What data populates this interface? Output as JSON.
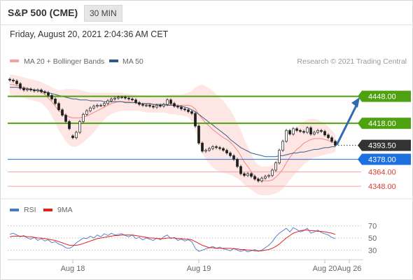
{
  "header": {
    "title": "S&P 500 (CME)",
    "timeframe": "30 MIN",
    "datetime": "Friday, August 20, 2021 2:04:36 AM CET"
  },
  "legend": {
    "ma20_bb": "MA 20 + Bollinger Bands",
    "ma50": "MA 50",
    "credit": "Research © 2021 Trading Central",
    "rsi": "RSI",
    "rsi_ma": "9MA"
  },
  "colors": {
    "bollinger_fill": "#fde3e0",
    "ma20": "#f08a80",
    "ma50": "#3a5f8a",
    "resistance": "#4ea20f",
    "pivot": "#1e6fe0",
    "support": "#f4a3a3",
    "last_price": "#333333",
    "arrow": "#2f6bb0",
    "rsi": "#4a79c8",
    "rsi_ma": "#e0221f",
    "candle": "#1f1f1f"
  },
  "chart_data": [
    {
      "type": "candlestick",
      "title": "S&P 500 (CME)",
      "interval": "30 MIN",
      "ylim": [
        4338,
        4478
      ],
      "x_tick_labels": [
        "Aug 18",
        "Aug 19",
        "Aug 20",
        "Aug 26"
      ],
      "levels": [
        {
          "label": "4448.00",
          "value": 4448.0,
          "kind": "resistance"
        },
        {
          "label": "4418.00",
          "value": 4418.0,
          "kind": "resistance"
        },
        {
          "label": "4393.50",
          "value": 4393.5,
          "kind": "last"
        },
        {
          "label": "4378.00",
          "value": 4378.0,
          "kind": "pivot"
        },
        {
          "label": "4364.00",
          "value": 4364.0,
          "kind": "support"
        },
        {
          "label": "4348.00",
          "value": 4348.0,
          "kind": "support"
        }
      ],
      "projection": {
        "from": 4394,
        "to": 4447
      },
      "close": [
        4466,
        4465,
        4462,
        4457,
        4455,
        4456,
        4455,
        4454,
        4455,
        4453,
        4452,
        4449,
        4445,
        4440,
        4433,
        4427,
        4420,
        4412,
        4402,
        4408,
        4420,
        4428,
        4432,
        4435,
        4437,
        4438,
        4438,
        4440,
        4443,
        4445,
        4446,
        4447,
        4447,
        4446,
        4445,
        4444,
        4441,
        4439,
        4438,
        4438,
        4437,
        4436,
        4438,
        4437,
        4439,
        4444,
        4440,
        4437,
        4436,
        4434,
        4433,
        4431,
        4429,
        4415,
        4396,
        4387,
        4388,
        4390,
        4392,
        4391,
        4390,
        4388,
        4385,
        4382,
        4378,
        4370,
        4362,
        4360,
        4362,
        4359,
        4356,
        4354,
        4357,
        4359,
        4360,
        4366,
        4374,
        4388,
        4398,
        4410,
        4406,
        4412,
        4410,
        4409,
        4408,
        4413,
        4406,
        4408,
        4410,
        4409,
        4405,
        4402,
        4398,
        4393.5
      ],
      "open": [
        4467,
        4466,
        4465,
        4462,
        4457,
        4455,
        4456,
        4455,
        4454,
        4455,
        4453,
        4452,
        4449,
        4445,
        4440,
        4433,
        4427,
        4420,
        4404,
        4402,
        4408,
        4420,
        4428,
        4432,
        4435,
        4437,
        4438,
        4438,
        4440,
        4443,
        4445,
        4446,
        4447,
        4447,
        4446,
        4445,
        4444,
        4441,
        4439,
        4438,
        4438,
        4437,
        4436,
        4438,
        4437,
        4439,
        4444,
        4440,
        4437,
        4436,
        4434,
        4433,
        4431,
        4429,
        4415,
        4396,
        4387,
        4388,
        4390,
        4392,
        4391,
        4390,
        4388,
        4385,
        4382,
        4378,
        4370,
        4362,
        4360,
        4362,
        4359,
        4356,
        4354,
        4357,
        4359,
        4360,
        4366,
        4374,
        4388,
        4398,
        4410,
        4406,
        4412,
        4410,
        4409,
        4408,
        4413,
        4406,
        4408,
        4410,
        4409,
        4405,
        4402,
        4398
      ],
      "bollinger_upper": [
        4472,
        4472,
        4471,
        4470,
        4469,
        4468,
        4467,
        4466,
        4465,
        4464,
        4462,
        4460,
        4458,
        4456,
        4455,
        4455,
        4456,
        4456,
        4456,
        4456,
        4455,
        4454,
        4453,
        4452,
        4452,
        4452,
        4452,
        4452,
        4452,
        4452,
        4452,
        4452,
        4452,
        4451,
        4451,
        4450,
        4450,
        4449,
        4449,
        4448,
        4448,
        4447,
        4447,
        4447,
        4447,
        4449,
        4450,
        4450,
        4450,
        4450,
        4451,
        4452,
        4454,
        4458,
        4460,
        4461,
        4459,
        4457,
        4454,
        4450,
        4446,
        4443,
        4438,
        4433,
        4426,
        4418,
        4410,
        4400,
        4392,
        4384,
        4376,
        4372,
        4370,
        4370,
        4370,
        4372,
        4376,
        4382,
        4390,
        4398,
        4405,
        4410,
        4414,
        4417,
        4420,
        4422,
        4423,
        4423,
        4422,
        4420,
        4418,
        4414,
        4410,
        4406
      ],
      "bollinger_lower": [
        4450,
        4449,
        4448,
        4447,
        4446,
        4445,
        4444,
        4443,
        4442,
        4441,
        4437,
        4432,
        4426,
        4418,
        4410,
        4404,
        4398,
        4394,
        4392,
        4392,
        4394,
        4397,
        4400,
        4404,
        4408,
        4413,
        4418,
        4422,
        4426,
        4428,
        4430,
        4431,
        4432,
        4432,
        4432,
        4432,
        4432,
        4432,
        4431,
        4430,
        4430,
        4430,
        4430,
        4430,
        4430,
        4429,
        4428,
        4428,
        4427,
        4427,
        4426,
        4425,
        4420,
        4410,
        4396,
        4385,
        4378,
        4373,
        4369,
        4366,
        4364,
        4363,
        4362,
        4361,
        4359,
        4357,
        4354,
        4350,
        4347,
        4344,
        4341,
        4339,
        4338,
        4338,
        4338,
        4339,
        4340,
        4342,
        4345,
        4350,
        4355,
        4360,
        4364,
        4368,
        4372,
        4375,
        4378,
        4380,
        4381,
        4382,
        4383,
        4384,
        4385,
        4386
      ],
      "ma20": [
        4461,
        4461,
        4460,
        4459,
        4458,
        4457,
        4456,
        4455,
        4454,
        4453,
        4450,
        4446,
        4442,
        4437,
        4432,
        4429,
        4427,
        4425,
        4424,
        4424,
        4424,
        4425,
        4426,
        4428,
        4430,
        4432,
        4434,
        4436,
        4438,
        4440,
        4441,
        4442,
        4442,
        4442,
        4442,
        4441,
        4441,
        4440,
        4440,
        4439,
        4439,
        4439,
        4438,
        4438,
        4438,
        4439,
        4439,
        4439,
        4438,
        4438,
        4438,
        4438,
        4437,
        4434,
        4428,
        4423,
        4418,
        4415,
        4411,
        4408,
        4405,
        4402,
        4400,
        4397,
        4393,
        4388,
        4382,
        4375,
        4370,
        4364,
        4359,
        4356,
        4354,
        4354,
        4354,
        4355,
        4358,
        4362,
        4367,
        4374,
        4380,
        4385,
        4389,
        4392,
        4396,
        4398,
        4400,
        4401,
        4401,
        4401,
        4400,
        4399,
        4397,
        4396
      ],
      "ma50": [
        4458,
        4458,
        4458,
        4457,
        4457,
        4456,
        4456,
        4455,
        4455,
        4454,
        4453,
        4452,
        4451,
        4450,
        4449,
        4448,
        4447,
        4446,
        4445,
        4445,
        4444,
        4444,
        4444,
        4443,
        4443,
        4443,
        4443,
        4442,
        4442,
        4442,
        4442,
        4442,
        4442,
        4441,
        4441,
        4441,
        4441,
        4440,
        4440,
        4440,
        4440,
        4439,
        4439,
        4439,
        4439,
        4438,
        4438,
        4438,
        4437,
        4437,
        4436,
        4435,
        4433,
        4431,
        4428,
        4425,
        4422,
        4419,
        4416,
        4413,
        4410,
        4407,
        4404,
        4400,
        4397,
        4394,
        4391,
        4389,
        4387,
        4385,
        4384,
        4383,
        4382,
        4381,
        4381,
        4381,
        4381,
        4382,
        4382,
        4383,
        4384,
        4385,
        4385,
        4386,
        4386,
        4387,
        4388,
        4389,
        4389,
        4390,
        4391,
        4391,
        4392,
        4392
      ]
    },
    {
      "type": "line",
      "title": "RSI",
      "ylim": [
        20,
        80
      ],
      "y_tick_labels": [
        "70",
        "50",
        "30"
      ],
      "reference_lines": [
        70,
        50,
        30
      ],
      "series": [
        {
          "name": "RSI",
          "values": [
            56,
            58,
            55,
            52,
            54,
            50,
            48,
            51,
            46,
            49,
            45,
            47,
            42,
            44,
            40,
            38,
            34,
            33,
            36,
            42,
            46,
            50,
            49,
            53,
            50,
            55,
            52,
            57,
            54,
            58,
            55,
            56,
            57,
            54,
            52,
            55,
            49,
            51,
            47,
            50,
            48,
            46,
            50,
            47,
            52,
            55,
            49,
            51,
            46,
            48,
            45,
            47,
            44,
            33,
            28,
            30,
            32,
            34,
            36,
            33,
            35,
            32,
            31,
            29,
            33,
            30,
            28,
            30,
            27,
            29,
            31,
            28,
            30,
            34,
            38,
            44,
            52,
            58,
            62,
            66,
            60,
            67,
            64,
            60,
            62,
            66,
            58,
            60,
            63,
            59,
            57,
            55,
            51,
            49
          ]
        },
        {
          "name": "9MA",
          "values": [
            52,
            53,
            53,
            53,
            53,
            52,
            52,
            51,
            50,
            50,
            49,
            48,
            47,
            46,
            44,
            42,
            40,
            38,
            38,
            38,
            39,
            41,
            43,
            45,
            47,
            49,
            50,
            51,
            52,
            53,
            54,
            54,
            55,
            55,
            55,
            55,
            54,
            53,
            52,
            51,
            50,
            50,
            49,
            49,
            49,
            50,
            50,
            50,
            49,
            49,
            48,
            48,
            47,
            44,
            41,
            38,
            36,
            34,
            34,
            33,
            33,
            33,
            33,
            33,
            32,
            32,
            31,
            31,
            30,
            30,
            29,
            29,
            29,
            30,
            31,
            33,
            36,
            40,
            45,
            50,
            54,
            58,
            60,
            62,
            63,
            63,
            62,
            62,
            61,
            61,
            60,
            59,
            58,
            56
          ]
        }
      ]
    }
  ]
}
